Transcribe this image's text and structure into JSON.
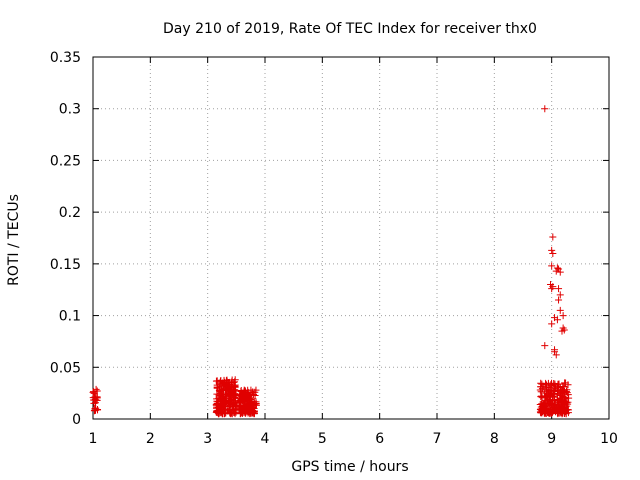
{
  "chart_data": {
    "type": "scatter",
    "title": "Day 210 of 2019, Rate Of TEC Index for receiver thx0",
    "xlabel": "GPS time / hours",
    "ylabel": "ROTI / TECUs",
    "xlim": [
      1,
      10
    ],
    "ylim": [
      0,
      0.35
    ],
    "x_ticks": [
      1,
      2,
      3,
      4,
      5,
      6,
      7,
      8,
      9,
      10
    ],
    "x_tick_labels": [
      "1",
      "2",
      "3",
      "4",
      "5",
      "6",
      "7",
      "8",
      "9",
      "10"
    ],
    "y_ticks": [
      0,
      0.05,
      0.1,
      0.15,
      0.2,
      0.25,
      0.3,
      0.35
    ],
    "y_tick_labels": [
      "0",
      "0.05",
      "0.1",
      "0.15",
      "0.2",
      "0.25",
      "0.3",
      "0.35"
    ],
    "grid": true,
    "marker": "+",
    "color": "#e00000",
    "clusters": [
      {
        "x_range": [
          1.0,
          1.08
        ],
        "y_range": [
          0.008,
          0.03
        ],
        "count": 25
      },
      {
        "x_range": [
          3.15,
          3.5
        ],
        "y_range": [
          0.005,
          0.038
        ],
        "count": 220
      },
      {
        "x_range": [
          3.55,
          3.85
        ],
        "y_range": [
          0.005,
          0.028
        ],
        "count": 180
      },
      {
        "x_range": [
          8.8,
          9.3
        ],
        "y_range": [
          0.005,
          0.035
        ],
        "count": 250
      }
    ],
    "points": [
      [
        8.88,
        0.3
      ],
      [
        9.02,
        0.176
      ],
      [
        9.0,
        0.163
      ],
      [
        9.02,
        0.16
      ],
      [
        9.0,
        0.148
      ],
      [
        9.1,
        0.146
      ],
      [
        9.12,
        0.145
      ],
      [
        9.08,
        0.143
      ],
      [
        9.15,
        0.142
      ],
      [
        8.98,
        0.13
      ],
      [
        9.02,
        0.128
      ],
      [
        9.0,
        0.126
      ],
      [
        9.12,
        0.126
      ],
      [
        9.15,
        0.12
      ],
      [
        9.12,
        0.115
      ],
      [
        9.15,
        0.105
      ],
      [
        9.2,
        0.1
      ],
      [
        9.05,
        0.098
      ],
      [
        9.1,
        0.096
      ],
      [
        9.0,
        0.092
      ],
      [
        9.2,
        0.088
      ],
      [
        9.22,
        0.086
      ],
      [
        9.18,
        0.085
      ],
      [
        8.88,
        0.071
      ],
      [
        9.05,
        0.067
      ],
      [
        9.08,
        0.062
      ],
      [
        9.05,
        0.065
      ]
    ]
  }
}
